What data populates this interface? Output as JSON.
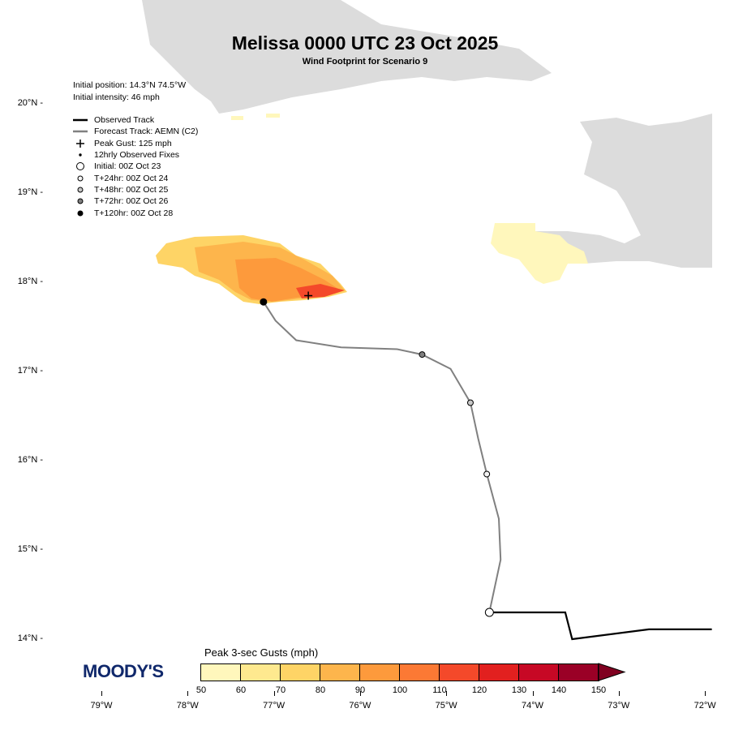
{
  "header": {
    "title": "Melissa 0000 UTC 23 Oct 2025",
    "subtitle": "Wind Footprint for Scenario 9"
  },
  "info": {
    "position": "Initial position: 14.3°N 74.5°W",
    "intensity": "Initial intensity: 46 mph"
  },
  "legend": [
    {
      "symbol": "observed-line",
      "label": "Observed Track"
    },
    {
      "symbol": "forecast-line",
      "label": "Forecast Track: AEMN (C2)"
    },
    {
      "symbol": "plus",
      "label": "Peak Gust: 125 mph"
    },
    {
      "symbol": "dot",
      "label": "12hrly Observed Fixes"
    },
    {
      "symbol": "circle-initial",
      "label": "Initial: 00Z Oct 23"
    },
    {
      "symbol": "circle-24",
      "label": "T+24hr: 00Z Oct 24"
    },
    {
      "symbol": "circle-48",
      "label": "T+48hr: 00Z Oct 25"
    },
    {
      "symbol": "circle-72",
      "label": "T+72hr: 00Z Oct 26"
    },
    {
      "symbol": "circle-120",
      "label": "T+120hr: 00Z Oct 28"
    }
  ],
  "axes": {
    "lat_labels": [
      "20°N",
      "19°N",
      "18°N",
      "17°N",
      "16°N",
      "15°N",
      "14°N"
    ],
    "lon_labels": [
      "79°W",
      "78°W",
      "77°W",
      "76°W",
      "75°W",
      "74°W",
      "73°W",
      "72°W"
    ]
  },
  "colorbar": {
    "title": "Peak 3-sec Gusts (mph)",
    "ticks": [
      "50",
      "60",
      "70",
      "80",
      "90",
      "100",
      "110",
      "120",
      "130",
      "140",
      "150"
    ],
    "colors": [
      "#fff7bc",
      "#fee98f",
      "#fed466",
      "#fdb54c",
      "#fd9a3c",
      "#fc7934",
      "#f4492a",
      "#e2201f",
      "#c70825",
      "#9a0026"
    ],
    "overflow_color": "#800020"
  },
  "logo": "MOODY'S",
  "observed_track": [
    [
      14.11,
      -71.92
    ],
    [
      14.11,
      -72.65
    ],
    [
      14.0,
      -73.54
    ],
    [
      14.3,
      -73.62
    ],
    [
      14.3,
      -74.5
    ]
  ],
  "forecast_track": [
    [
      14.3,
      -74.5
    ],
    [
      14.89,
      -74.37
    ],
    [
      15.35,
      -74.39
    ],
    [
      15.85,
      -74.53
    ],
    [
      16.25,
      -74.63
    ],
    [
      16.65,
      -74.72
    ],
    [
      17.03,
      -74.95
    ],
    [
      17.19,
      -75.28
    ],
    [
      17.25,
      -75.57
    ],
    [
      17.27,
      -76.22
    ],
    [
      17.35,
      -76.74
    ],
    [
      17.57,
      -76.98
    ],
    [
      17.78,
      -77.12
    ]
  ],
  "markers": [
    {
      "type": "circle-initial",
      "lat": 14.3,
      "lon": -74.5
    },
    {
      "type": "circle-24",
      "lat": 15.85,
      "lon": -74.53
    },
    {
      "type": "circle-48",
      "lat": 16.65,
      "lon": -74.72
    },
    {
      "type": "circle-72",
      "lat": 17.19,
      "lon": -75.28
    },
    {
      "type": "circle-120",
      "lat": 17.78,
      "lon": -77.12
    }
  ],
  "peak_gust": {
    "lat": 17.85,
    "lon": -76.6,
    "value_mph": 125
  },
  "colors": {
    "land": "#dcdcdc",
    "observed": "#000000",
    "forecast": "#808080"
  }
}
